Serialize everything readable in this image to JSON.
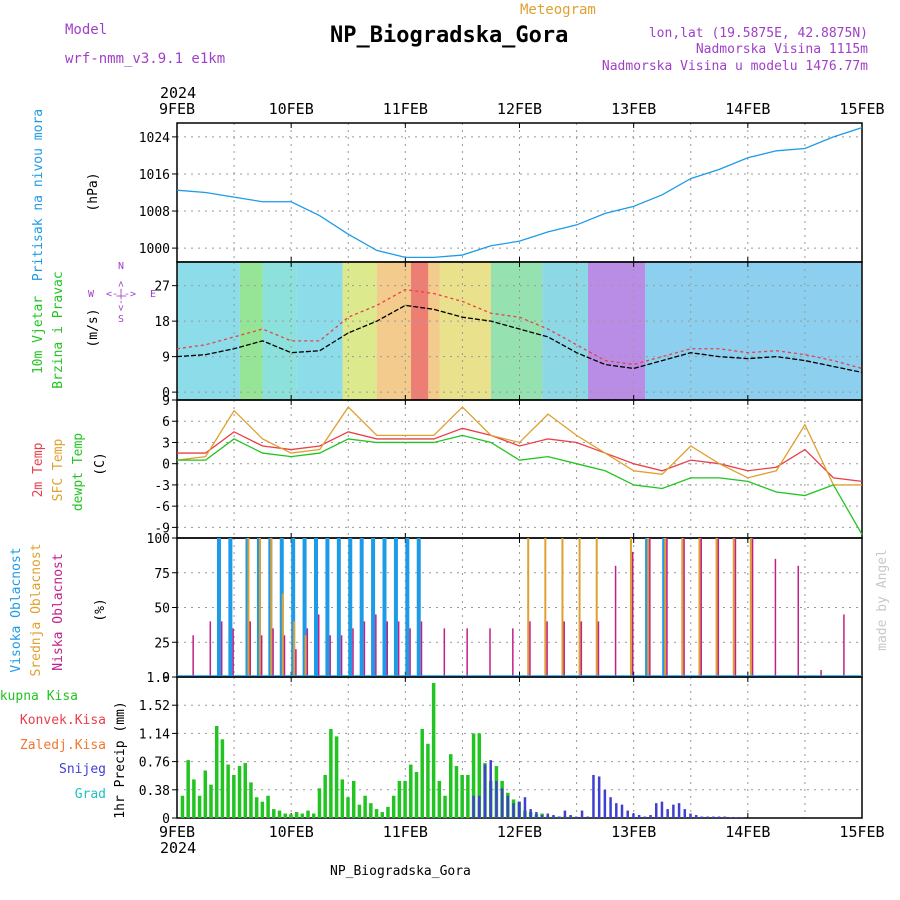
{
  "header": {
    "model_label": "Model",
    "model_name": "wrf-nmm_v3.9.1 e1km",
    "meteogram_label": "Meteogram",
    "station_title": "NP_Biogradska_Gora",
    "lonlat": "lon,lat (19.5875E, 42.8875N)",
    "altitude": "Nadmorska Visina 1115m",
    "model_altitude": "Nadmorska Visina u modelu 1476.77m"
  },
  "footer": {
    "station": "NP_Biogradska_Gora",
    "watermark": "made by Angel"
  },
  "time_axis": {
    "year": "2024",
    "labels": [
      "9FEB",
      "10FEB",
      "11FEB",
      "12FEB",
      "13FEB",
      "14FEB",
      "15FEB"
    ]
  },
  "panels": {
    "pressure": {
      "label1": "Pritisak na nivou mora",
      "unit": "(hPa)"
    },
    "wind": {
      "label1": "10m Vjetar",
      "label2": "Brzina i Pravac",
      "unit": "(m/s)",
      "compass_n": "N",
      "compass_s": "S",
      "compass_w": "W",
      "compass_e": "E",
      "compass_mark": "<-|->"
    },
    "temp": {
      "label1": "2m Temp",
      "label2": "SFC Temp",
      "label3": "dewpt Temp",
      "unit": "(C)"
    },
    "cloud": {
      "label1": "Visoka Oblacnost",
      "label2": "Srednja Oblacnost",
      "label3": "Niska Oblacnost",
      "unit": "(%)"
    },
    "precip": {
      "unit": "1hr Precip (mm)",
      "legend": [
        "Ukupna Kisa",
        "Konvek.Kisa",
        "Zaledj.Kisa",
        "Snijeg",
        "Grad"
      ]
    }
  },
  "colors": {
    "pressure": "#1e9be6",
    "temp2m": "#e8404a",
    "sfc": "#e0a030",
    "dewpt": "#22c422",
    "high_cloud": "#1e9be6",
    "mid_cloud": "#e0a030",
    "low_cloud": "#c0208a",
    "total_rain": "#22c422",
    "conv_rain": "#e8404a",
    "frz_rain": "#f07830",
    "snow": "#4040d0",
    "hail": "#20c0c0",
    "wind_speed": "#000000",
    "wind_gust": "#e8404a"
  },
  "chart_data": [
    {
      "type": "line",
      "title": "Pritisak na nivou mora",
      "ylabel": "(hPa)",
      "ylim": [
        997,
        1027
      ],
      "yticks": [
        1000,
        1008,
        1016,
        1024
      ],
      "x_days": [
        0,
        0.25,
        0.5,
        0.75,
        1,
        1.25,
        1.5,
        1.75,
        2,
        2.25,
        2.5,
        2.75,
        3,
        3.25,
        3.5,
        3.75,
        4,
        4.25,
        4.5,
        4.75,
        5,
        5.25,
        5.5,
        5.75,
        6
      ],
      "series": [
        {
          "values": [
            1012.5,
            1012,
            1011,
            1010,
            1010,
            1007,
            1003,
            999.5,
            998,
            998,
            998.5,
            1000.5,
            1001.5,
            1003.5,
            1005,
            1007.5,
            1009,
            1011.5,
            1015,
            1017,
            1019.5,
            1021,
            1021.5,
            1024,
            1026
          ]
        }
      ]
    },
    {
      "type": "line",
      "title": "10m Vjetar Brzina i Pravac",
      "ylabel": "(m/s)",
      "ylim": [
        -2,
        33
      ],
      "yticks": [
        0,
        9,
        18,
        27
      ],
      "x_days": [
        0,
        0.25,
        0.5,
        0.75,
        1,
        1.25,
        1.5,
        1.75,
        2,
        2.25,
        2.5,
        2.75,
        3,
        3.25,
        3.5,
        3.75,
        4,
        4.25,
        4.5,
        4.75,
        5,
        5.25,
        5.5,
        5.75,
        6
      ],
      "series": [
        {
          "name": "speed",
          "values": [
            9,
            9.5,
            11,
            13,
            10,
            10.5,
            15,
            18,
            22,
            21,
            19,
            18,
            16,
            14,
            10,
            7,
            6,
            8,
            10,
            9,
            8.5,
            9,
            8,
            6.5,
            5
          ]
        },
        {
          "name": "gust",
          "values": [
            11,
            12,
            14,
            16,
            13,
            13,
            19,
            22,
            26,
            25,
            23,
            20,
            19,
            16,
            12,
            8,
            7,
            9,
            11,
            11,
            10,
            10.5,
            9.5,
            8,
            6
          ]
        }
      ]
    },
    {
      "type": "line",
      "title": "Temperature",
      "ylabel": "(C)",
      "ylim": [
        -10.5,
        9
      ],
      "yticks": [
        -9,
        -6,
        -3,
        0,
        3,
        6,
        9
      ],
      "x_days": [
        0,
        0.25,
        0.5,
        0.75,
        1,
        1.25,
        1.5,
        1.75,
        2,
        2.25,
        2.5,
        2.75,
        3,
        3.25,
        3.5,
        3.75,
        4,
        4.25,
        4.5,
        4.75,
        5,
        5.25,
        5.5,
        5.75,
        6
      ],
      "series": [
        {
          "name": "2m Temp",
          "values": [
            1.5,
            1.5,
            4.5,
            2.5,
            2,
            2.5,
            4.5,
            3.5,
            3.5,
            3.5,
            5,
            4,
            2.5,
            3.5,
            3,
            1.5,
            0,
            -1,
            0.5,
            0,
            -1,
            -0.5,
            2,
            -2,
            -2.5
          ]
        },
        {
          "name": "SFC Temp",
          "values": [
            0.5,
            1,
            7.5,
            3.5,
            1.5,
            2,
            8,
            4,
            4,
            4,
            8,
            4,
            3,
            7,
            4,
            1.5,
            -1,
            -1.5,
            2.5,
            0,
            -2,
            -1,
            5.5,
            -3,
            -3
          ]
        },
        {
          "name": "dewpt Temp",
          "values": [
            0.5,
            0.5,
            3.5,
            1.5,
            1,
            1.5,
            3.5,
            3,
            3,
            3,
            4,
            3,
            0.5,
            1,
            0,
            -1,
            -3,
            -3.5,
            -2,
            -2,
            -2.5,
            -4,
            -4.5,
            -3,
            -10
          ]
        }
      ]
    },
    {
      "type": "bar",
      "title": "Oblacnost",
      "ylabel": "(%)",
      "ylim": [
        0,
        100
      ],
      "yticks": [
        0,
        25,
        50,
        75,
        100
      ],
      "x_days": [
        0.1,
        0.25,
        0.35,
        0.45,
        0.6,
        0.7,
        0.8,
        0.9,
        1.0,
        1.1,
        1.2,
        1.3,
        1.4,
        1.5,
        1.6,
        1.7,
        1.8,
        1.9,
        2.0,
        2.1,
        2.3,
        2.5,
        2.7,
        2.9,
        3.05,
        3.2,
        3.35,
        3.5,
        3.65,
        3.8,
        3.95,
        4.1,
        4.25,
        4.4,
        4.55,
        4.7,
        4.85,
        5.0,
        5.2,
        5.4,
        5.6,
        5.8
      ],
      "series": [
        {
          "name": "Visoka Oblacnost",
          "values": [
            0,
            0,
            100,
            100,
            100,
            100,
            100,
            100,
            100,
            100,
            100,
            100,
            100,
            100,
            100,
            100,
            100,
            100,
            100,
            100,
            0,
            0,
            0,
            0,
            0,
            0,
            0,
            0,
            0,
            0,
            0,
            100,
            100,
            0,
            0,
            0,
            0,
            0,
            0,
            0,
            0,
            0
          ]
        },
        {
          "name": "Srednja Oblacnost",
          "values": [
            0,
            0,
            0,
            0,
            100,
            100,
            100,
            60,
            40,
            30,
            0,
            0,
            0,
            0,
            0,
            0,
            0,
            0,
            0,
            0,
            0,
            0,
            0,
            0,
            100,
            100,
            100,
            100,
            100,
            0,
            100,
            100,
            100,
            100,
            100,
            100,
            100,
            100,
            0,
            0,
            0,
            0
          ]
        },
        {
          "name": "Niska Oblacnost",
          "values": [
            30,
            40,
            40,
            35,
            40,
            30,
            35,
            30,
            20,
            35,
            45,
            30,
            30,
            35,
            40,
            45,
            40,
            40,
            35,
            40,
            35,
            35,
            35,
            35,
            40,
            40,
            40,
            40,
            40,
            80,
            90,
            100,
            100,
            100,
            100,
            100,
            100,
            100,
            85,
            80,
            5,
            45
          ]
        }
      ]
    },
    {
      "type": "bar",
      "title": "1hr Precip",
      "ylabel": "1hr Precip (mm)",
      "ylim": [
        0,
        1.9
      ],
      "yticks": [
        0,
        0.38,
        0.76,
        1.14,
        1.52,
        1.9
      ],
      "x_days": [
        0.05,
        0.1,
        0.15,
        0.2,
        0.25,
        0.3,
        0.35,
        0.4,
        0.45,
        0.5,
        0.55,
        0.6,
        0.65,
        0.7,
        0.75,
        0.8,
        0.85,
        0.9,
        0.95,
        1.0,
        1.05,
        1.1,
        1.15,
        1.2,
        1.25,
        1.3,
        1.35,
        1.4,
        1.45,
        1.5,
        1.55,
        1.6,
        1.65,
        1.7,
        1.75,
        1.8,
        1.85,
        1.9,
        1.95,
        2.0,
        2.05,
        2.1,
        2.15,
        2.2,
        2.25,
        2.3,
        2.35,
        2.4,
        2.45,
        2.5,
        2.55,
        2.6,
        2.65,
        2.7,
        2.75,
        2.8,
        2.85,
        2.9,
        2.95,
        3.0,
        3.05,
        3.1,
        3.15,
        3.2,
        3.25,
        3.3,
        3.35,
        3.4,
        3.45,
        3.5,
        3.55,
        3.6,
        3.65,
        3.7,
        3.75,
        3.8,
        3.85,
        3.9,
        3.95,
        4.0,
        4.05,
        4.1,
        4.15,
        4.2,
        4.25,
        4.3,
        4.35,
        4.4,
        4.45,
        4.5,
        4.55,
        4.6,
        4.65,
        4.7,
        4.75,
        4.8,
        4.85,
        4.9,
        4.95,
        5.0,
        5.05,
        5.1,
        5.15,
        5.2,
        5.25,
        5.3,
        5.35,
        5.4,
        5.45,
        5.5
      ],
      "series": [
        {
          "name": "Ukupna Kisa",
          "values": [
            0.3,
            0.78,
            0.52,
            0.3,
            0.64,
            0.45,
            1.24,
            1.06,
            0.72,
            0.58,
            0.7,
            0.74,
            0.48,
            0.28,
            0.22,
            0.3,
            0.12,
            0.1,
            0.06,
            0.05,
            0.08,
            0.06,
            0.1,
            0.06,
            0.4,
            0.58,
            1.2,
            1.1,
            0.52,
            0.28,
            0.5,
            0.18,
            0.3,
            0.2,
            0.12,
            0.08,
            0.15,
            0.3,
            0.5,
            0.5,
            0.72,
            0.62,
            1.2,
            1.0,
            1.82,
            0.5,
            0.3,
            0.86,
            0.7,
            0.58,
            0.58,
            1.14,
            1.14,
            0.74,
            0.5,
            0.7,
            0.5,
            0.34,
            0.25,
            0.22,
            0.1,
            0.08,
            0.05,
            0.06,
            0.02,
            0.02,
            0.02,
            0.02,
            0.02,
            0.0,
            0.0,
            0.0,
            0.0,
            0.0,
            0.0,
            0.0,
            0.0,
            0.0,
            0.0,
            0.0,
            0.0,
            0.0,
            0.0,
            0.0,
            0.0,
            0.0,
            0.0,
            0.0,
            0.0,
            0.0,
            0.0,
            0.0,
            0.0,
            0.0,
            0.0,
            0.0,
            0.0,
            0.0,
            0.0,
            0.0,
            0.0,
            0.0,
            0.0,
            0.0,
            0.0,
            0.0,
            0.0,
            0.0,
            0.0,
            0.0
          ]
        },
        {
          "name": "Snijeg",
          "values": [
            0,
            0,
            0,
            0,
            0,
            0,
            0,
            0,
            0,
            0,
            0,
            0,
            0,
            0,
            0,
            0,
            0,
            0,
            0,
            0,
            0,
            0,
            0,
            0,
            0,
            0,
            0,
            0,
            0,
            0,
            0,
            0,
            0,
            0,
            0,
            0,
            0,
            0,
            0,
            0,
            0,
            0,
            0,
            0,
            0,
            0,
            0,
            0,
            0,
            0,
            0,
            0.3,
            0.3,
            0.72,
            0.78,
            0.5,
            0.4,
            0.3,
            0.2,
            0.22,
            0.28,
            0.12,
            0.08,
            0.04,
            0.06,
            0.04,
            0.02,
            0.1,
            0.04,
            0.02,
            0.1,
            0.02,
            0.58,
            0.56,
            0.38,
            0.28,
            0.2,
            0.18,
            0.1,
            0.06,
            0.04,
            0.02,
            0.04,
            0.2,
            0.22,
            0.12,
            0.18,
            0.2,
            0.12,
            0.06,
            0.04,
            0.02,
            0.02,
            0.02,
            0.02,
            0.02,
            0.01,
            0.01,
            0.01,
            0.0,
            0.0,
            0.0,
            0.0,
            0.0,
            0.0,
            0.0,
            0.0,
            0.0,
            0.0,
            0.0
          ]
        }
      ]
    }
  ]
}
